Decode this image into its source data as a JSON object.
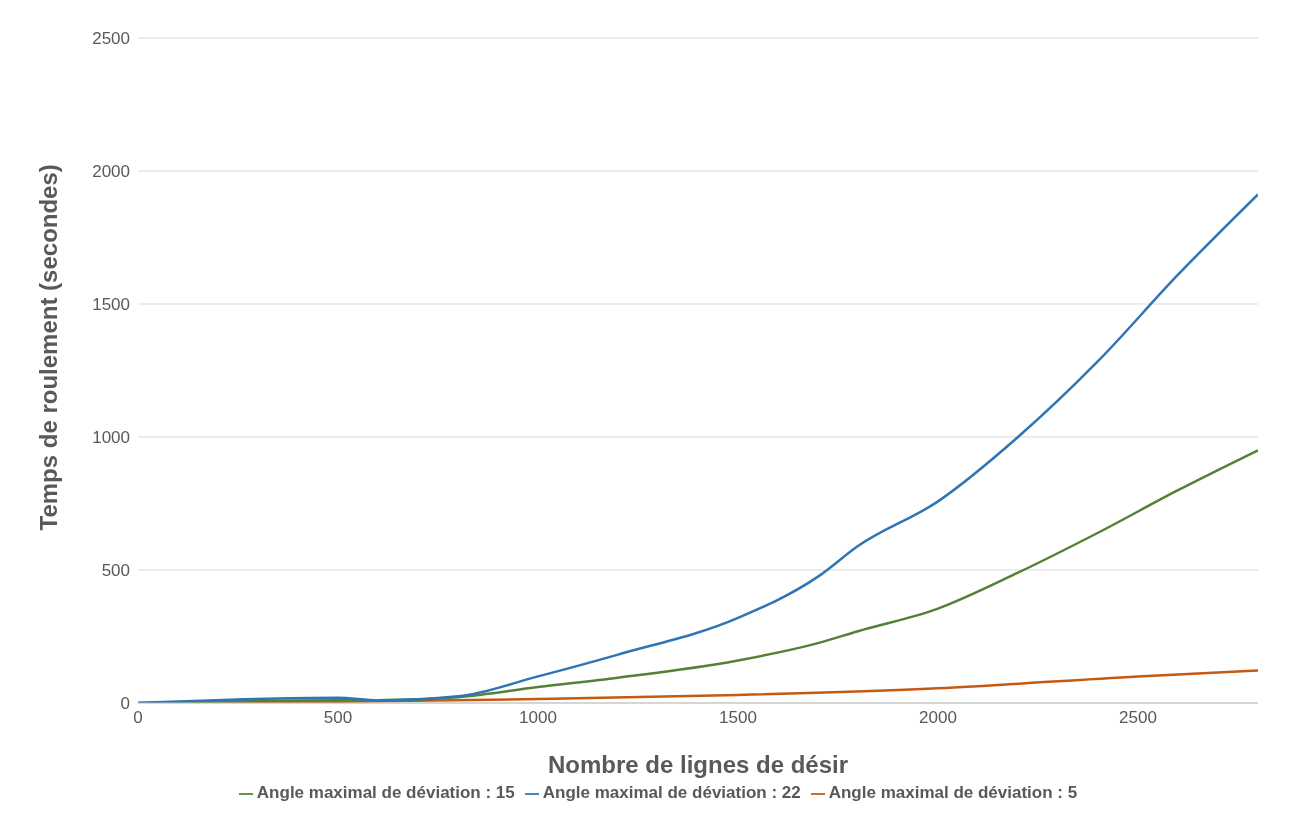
{
  "chart_data": {
    "type": "line",
    "xlabel": "Nombre de lignes de désir",
    "ylabel": "Temps de roulement (secondes)",
    "xlim": [
      0,
      2800
    ],
    "xticks": [
      0,
      500,
      1000,
      1500,
      2000,
      2500
    ],
    "ylim": [
      0,
      2500
    ],
    "yticks": [
      0,
      500,
      1000,
      1500,
      2000,
      2500
    ],
    "grid": "y",
    "legend": "bottom",
    "marker": "none",
    "line_style": "solid",
    "series": [
      {
        "name": "Angle maximal de déviation : 5",
        "color": "#c55a11",
        "x": [
          0,
          500,
          1000,
          1500,
          2000,
          2500,
          2800
        ],
        "values": [
          0,
          5,
          15,
          30,
          55,
          100,
          122
        ]
      },
      {
        "name": "Angle maximal de déviation : 15",
        "color": "#548235",
        "x": [
          0,
          500,
          600,
          800,
          1000,
          1200,
          1500,
          1700,
          1800,
          2000,
          2200,
          2400,
          2600,
          2800
        ],
        "values": [
          0,
          10,
          10,
          22,
          60,
          95,
          160,
          225,
          270,
          355,
          490,
          640,
          800,
          950
        ]
      },
      {
        "name": "Angle maximal de déviation : 22",
        "color": "#2e75b6",
        "x": [
          0,
          500,
          600,
          800,
          1000,
          1200,
          1500,
          1700,
          1800,
          2000,
          2200,
          2400,
          2600,
          2800
        ],
        "values": [
          0,
          20,
          10,
          25,
          100,
          182,
          320,
          475,
          590,
          758,
          1000,
          1285,
          1610,
          1912
        ]
      }
    ]
  }
}
